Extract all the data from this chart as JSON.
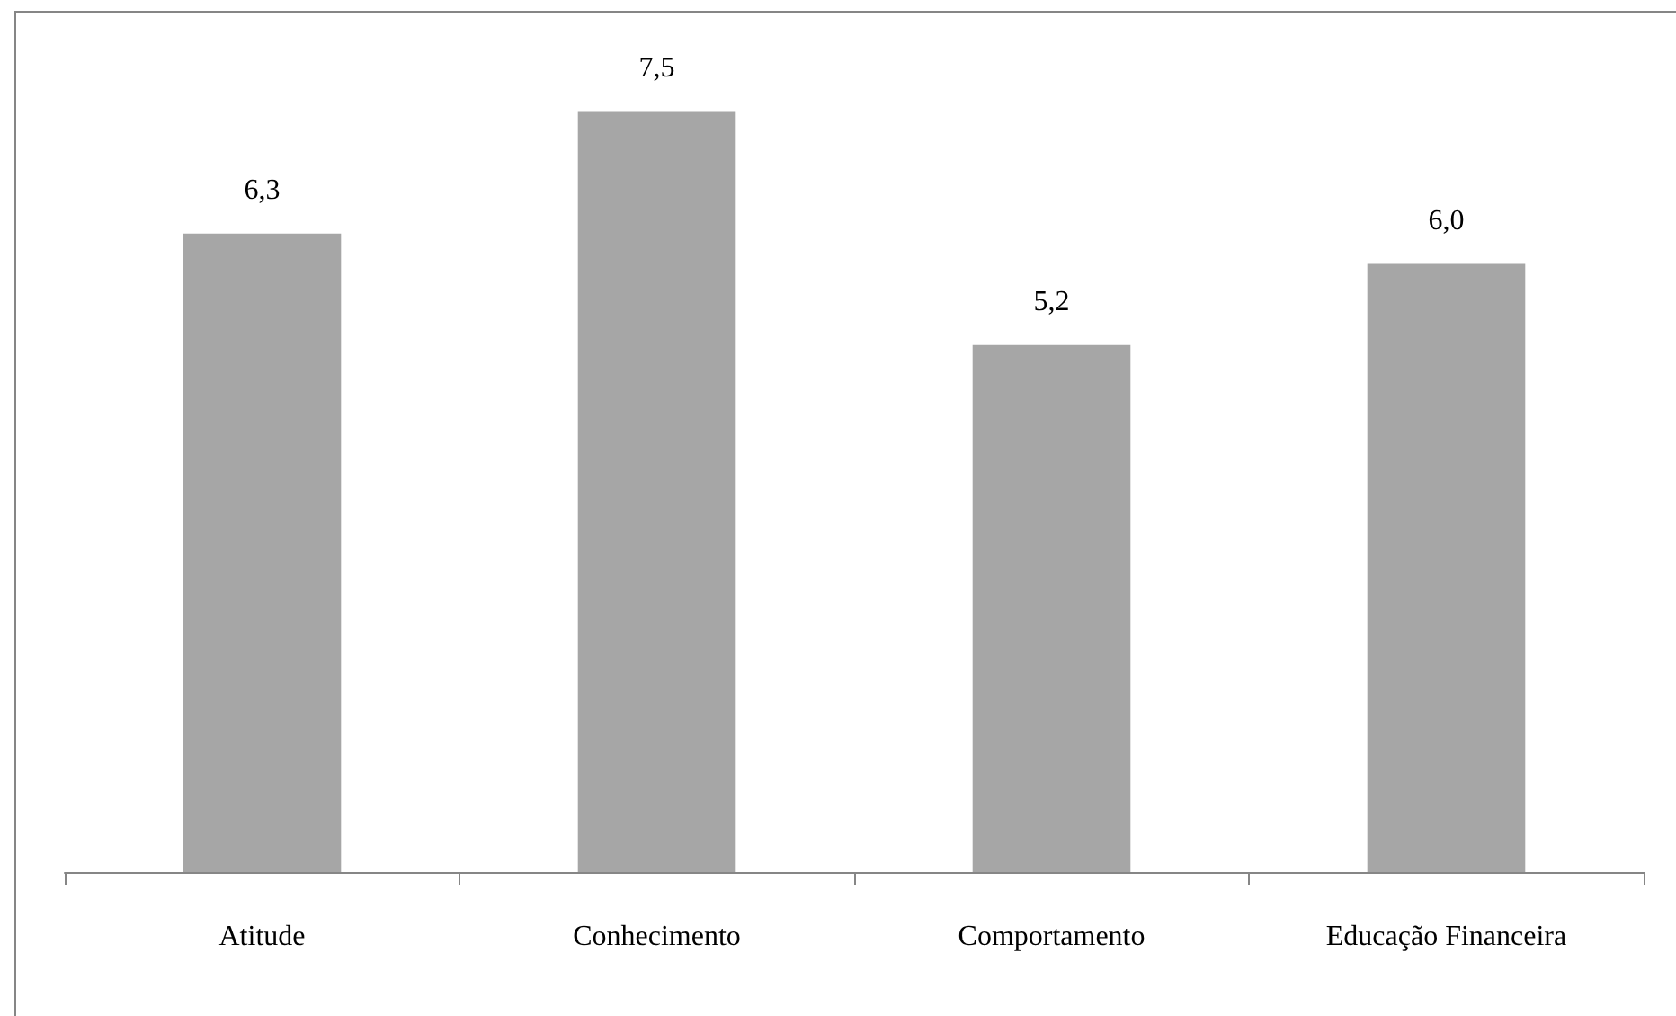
{
  "chart_data": {
    "type": "bar",
    "categories": [
      "Atitude",
      "Conhecimento",
      "Comportamento",
      "Educação Financeira"
    ],
    "values": [
      6.3,
      7.5,
      5.2,
      6.0
    ],
    "color": "#a6a6a6",
    "value_labels": [
      "6,3",
      "7,5",
      "5,2",
      "6,0"
    ]
  }
}
